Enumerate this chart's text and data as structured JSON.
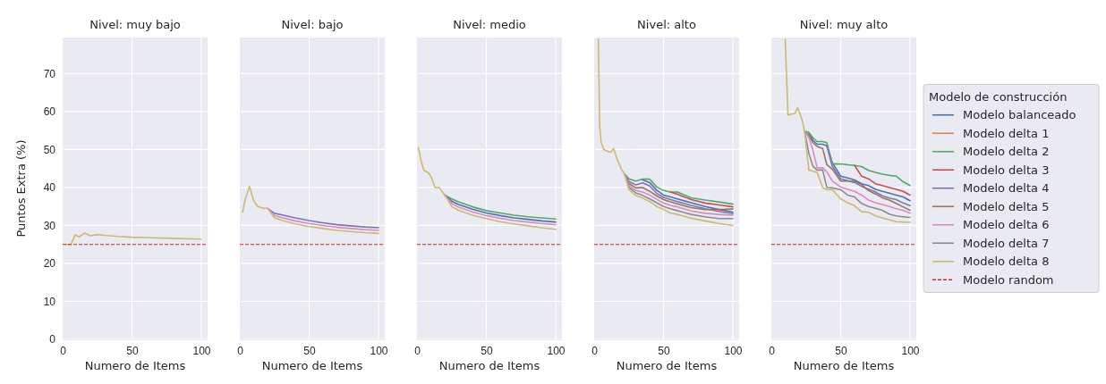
{
  "chart_data": [
    {
      "type": "line",
      "title": "Nivel: muy bajo",
      "xlabel": "Numero de Items",
      "ylabel": "Puntos Extra (%)",
      "xlim": [
        0,
        104.5
      ],
      "ylim": [
        0,
        79.5
      ],
      "xticks": [
        0,
        50,
        100
      ],
      "yticks": [
        0,
        10,
        20,
        30,
        40,
        50,
        60,
        70
      ],
      "grid": true,
      "x": [
        2,
        6,
        9,
        12,
        16,
        20,
        25,
        30,
        40,
        50,
        60,
        70,
        80,
        90,
        100
      ],
      "series": [
        {
          "color": "#ccb974",
          "values": [
            25,
            25,
            27.5,
            27,
            28,
            27.3,
            27.6,
            27.4,
            27.1,
            26.9,
            26.8,
            26.7,
            26.6,
            26.5,
            26.4
          ]
        }
      ],
      "ref_lines": [
        {
          "axis": "y",
          "value": 25,
          "color": "#d62728",
          "line_style": "dashed"
        }
      ]
    },
    {
      "type": "line",
      "title": "Nivel: bajo",
      "xlabel": "Numero de Items",
      "xlim": [
        0,
        104.5
      ],
      "ylim": [
        0,
        79.5
      ],
      "xticks": [
        0,
        50,
        100
      ],
      "yticks": [
        0,
        10,
        20,
        30,
        40,
        50,
        60,
        70
      ],
      "grid": true,
      "tick_labels": "x",
      "x": [
        2,
        4,
        7,
        10,
        13,
        17,
        20,
        25,
        30,
        40,
        50,
        60,
        70,
        80,
        90,
        100
      ],
      "series": [
        {
          "color": "#8172b3",
          "values": [
            null,
            null,
            null,
            null,
            null,
            null,
            34.5,
            33.2,
            32.8,
            32,
            31.3,
            30.7,
            30.2,
            29.9,
            29.6,
            29.4
          ]
        },
        {
          "color": "#da8bc3",
          "values": [
            null,
            null,
            null,
            null,
            null,
            null,
            34.5,
            32.6,
            32.1,
            31.2,
            30.5,
            30,
            29.5,
            29.2,
            28.9,
            28.7
          ]
        },
        {
          "color": "#ccb974",
          "values": [
            33.5,
            37,
            40.3,
            36.5,
            35,
            34.5,
            34.5,
            32,
            31.4,
            30.4,
            29.7,
            29.2,
            28.7,
            28.4,
            28.1,
            27.9
          ]
        }
      ],
      "ref_lines": [
        {
          "axis": "y",
          "value": 25,
          "color": "#d62728",
          "line_style": "dashed"
        }
      ]
    },
    {
      "type": "line",
      "title": "Nivel: medio",
      "xlabel": "Numero de Items",
      "xlim": [
        0,
        104.5
      ],
      "ylim": [
        0,
        79.5
      ],
      "xticks": [
        0,
        50,
        100
      ],
      "yticks": [
        0,
        10,
        20,
        30,
        40,
        50,
        60,
        70
      ],
      "grid": true,
      "tick_labels": "x",
      "x": [
        1,
        3,
        5,
        8,
        10,
        13,
        16,
        20,
        25,
        30,
        40,
        50,
        60,
        70,
        80,
        90,
        100
      ],
      "series": [
        {
          "color": "#55a868",
          "values": [
            null,
            null,
            null,
            null,
            null,
            null,
            null,
            38,
            37,
            36.2,
            34.9,
            33.9,
            33.3,
            32.7,
            32.3,
            32,
            31.7
          ]
        },
        {
          "color": "#4c72b0",
          "values": [
            null,
            null,
            null,
            null,
            null,
            null,
            null,
            38,
            36.4,
            35.5,
            34.3,
            33.3,
            32.6,
            32,
            31.6,
            31.2,
            30.9
          ]
        },
        {
          "color": "#da8bc3",
          "values": [
            null,
            null,
            null,
            null,
            null,
            null,
            null,
            38,
            35.8,
            34.8,
            33.6,
            32.6,
            31.9,
            31.3,
            30.9,
            30.5,
            30.2
          ]
        },
        {
          "color": "#ccb974",
          "values": [
            50.5,
            47,
            44.5,
            44,
            43,
            40,
            40,
            38,
            35,
            34,
            32.7,
            31.8,
            31,
            30.4,
            29.9,
            29.4,
            29
          ]
        }
      ],
      "ref_lines": [
        {
          "axis": "y",
          "value": 25,
          "color": "#d62728",
          "line_style": "dashed"
        }
      ]
    },
    {
      "type": "line",
      "title": "Nivel: alto",
      "xlabel": "Numero de Items",
      "xlim": [
        0,
        104.5
      ],
      "ylim": [
        0,
        79.5
      ],
      "xticks": [
        0,
        50,
        100
      ],
      "yticks": [
        0,
        10,
        20,
        30,
        40,
        50,
        60,
        70
      ],
      "grid": true,
      "tick_labels": "x",
      "x": [
        3,
        4,
        5,
        7,
        10,
        12,
        14,
        17,
        20,
        22,
        25,
        30,
        35,
        40,
        45,
        50,
        55,
        60,
        70,
        80,
        90,
        100
      ],
      "series": [
        {
          "color": "#4c72b0",
          "values": [
            null,
            null,
            null,
            null,
            null,
            null,
            null,
            null,
            null,
            null,
            null,
            null,
            42,
            41.3,
            39.3,
            38,
            37.5,
            37,
            36,
            35,
            34.2,
            33.5
          ]
        },
        {
          "color": "#55a868",
          "values": [
            null,
            null,
            null,
            null,
            null,
            null,
            null,
            null,
            null,
            43.5,
            42.3,
            41.7,
            42.2,
            42.2,
            40.2,
            39.2,
            38.8,
            38.8,
            37.3,
            36.7,
            36.2,
            35.6
          ]
        },
        {
          "color": "#c44e52",
          "values": [
            null,
            null,
            null,
            null,
            null,
            null,
            null,
            null,
            null,
            null,
            null,
            null,
            null,
            null,
            null,
            null,
            38.8,
            38.2,
            36.8,
            35.9,
            35.4,
            34.9
          ]
        },
        {
          "color": "#8172b3",
          "values": [
            null,
            null,
            null,
            null,
            null,
            null,
            null,
            null,
            null,
            43.5,
            41.6,
            40.7,
            41.2,
            40.4,
            38.5,
            37.4,
            36.8,
            36.3,
            35.3,
            34.4,
            33.7,
            33.1
          ]
        },
        {
          "color": "#937860",
          "values": [
            null,
            null,
            null,
            null,
            null,
            null,
            null,
            null,
            null,
            43.5,
            41.1,
            39.9,
            40,
            39,
            37.8,
            36.8,
            36.2,
            35.7,
            34.7,
            34.2,
            34.2,
            34.3
          ]
        },
        {
          "color": "#da8bc3",
          "values": [
            null,
            null,
            null,
            null,
            null,
            null,
            null,
            null,
            null,
            43.5,
            40.6,
            39.2,
            38.8,
            38,
            36.9,
            35.9,
            35.3,
            34.9,
            33.8,
            33.2,
            32.9,
            32.7
          ]
        },
        {
          "color": "#8c8c8c",
          "values": [
            null,
            null,
            null,
            null,
            null,
            null,
            null,
            null,
            null,
            43.5,
            40.1,
            38.6,
            37.9,
            37,
            36,
            35,
            34.4,
            33.9,
            32.9,
            32.3,
            31.8,
            31.8
          ]
        },
        {
          "color": "#ccb974",
          "values": [
            79,
            56,
            52,
            50,
            49.5,
            49.3,
            50.3,
            47,
            44.6,
            43.5,
            39.5,
            37.9,
            37.2,
            36.3,
            35,
            34.2,
            33.3,
            32.9,
            31.9,
            31.2,
            30.5,
            30
          ]
        }
      ],
      "ref_lines": [
        {
          "axis": "y",
          "value": 25,
          "color": "#d62728",
          "line_style": "dashed"
        }
      ]
    },
    {
      "type": "line",
      "title": "Nivel: muy alto",
      "xlabel": "Numero de Items",
      "xlim": [
        0,
        104.5
      ],
      "ylim": [
        0,
        79.5
      ],
      "xticks": [
        0,
        50,
        100
      ],
      "yticks": [
        0,
        10,
        20,
        30,
        40,
        50,
        60,
        70
      ],
      "grid": true,
      "tick_labels": "x",
      "legend": "right",
      "legend_title": "Modelo de construcción",
      "x": [
        10,
        12,
        17,
        19,
        22,
        24,
        27,
        30,
        33,
        37,
        40,
        44,
        50,
        55,
        60,
        65,
        70,
        75,
        80,
        85,
        90,
        95,
        100
      ],
      "series": [
        {
          "name": "Modelo balanceado",
          "color": "#4c72b0",
          "values": [
            null,
            null,
            null,
            null,
            null,
            null,
            54.5,
            52.4,
            51.4,
            51.4,
            51,
            46.5,
            43,
            42.5,
            42,
            41,
            40.5,
            39.5,
            39,
            38.5,
            38,
            37.5,
            36.5
          ]
        },
        {
          "name": "Modelo delta 1",
          "color": "#dd8452",
          "values": [
            null,
            null,
            null,
            null,
            null,
            null,
            null,
            null,
            null,
            null,
            null,
            null,
            null,
            null,
            null,
            null,
            null,
            null,
            null,
            null,
            null,
            null,
            null
          ]
        },
        {
          "name": "Modelo delta 2",
          "color": "#55a868",
          "values": [
            null,
            null,
            null,
            null,
            null,
            54.8,
            54.5,
            53.1,
            52.1,
            52.1,
            51.8,
            46.2,
            46.2,
            46,
            45.8,
            45.5,
            44.5,
            44,
            43.5,
            43.2,
            43,
            41.5,
            40.5
          ]
        },
        {
          "name": "Modelo delta 3",
          "color": "#c44e52",
          "values": [
            null,
            null,
            null,
            null,
            null,
            null,
            null,
            null,
            null,
            null,
            null,
            null,
            null,
            null,
            45.8,
            43,
            42.3,
            41,
            40.5,
            40,
            39.5,
            39,
            38
          ]
        },
        {
          "name": "Modelo delta 4",
          "color": "#8172b3",
          "values": [
            null,
            null,
            null,
            null,
            null,
            null,
            null,
            null,
            null,
            null,
            51,
            45.5,
            42.3,
            41.8,
            41.3,
            40.3,
            39.6,
            38.8,
            37.8,
            37.2,
            36.8,
            35.9,
            35.2
          ]
        },
        {
          "name": "Modelo delta 5",
          "color": "#937860",
          "values": [
            null,
            null,
            null,
            null,
            null,
            54.8,
            53.8,
            51.8,
            50.8,
            50.3,
            46,
            44.8,
            41.7,
            41.7,
            41.6,
            40.8,
            39.2,
            38.3,
            37.3,
            36.7,
            35.8,
            34.9,
            34
          ]
        },
        {
          "name": "Modelo delta 6",
          "color": "#da8bc3",
          "values": [
            null,
            null,
            null,
            null,
            null,
            54.8,
            53.2,
            49.8,
            45.2,
            45.2,
            44.1,
            41.7,
            40.1,
            39.5,
            39,
            38,
            36.7,
            36,
            35.5,
            35,
            34.4,
            34,
            33.2
          ]
        },
        {
          "name": "Modelo delta 7",
          "color": "#8c8c8c",
          "values": [
            null,
            null,
            null,
            null,
            null,
            54.8,
            49,
            45.6,
            44.6,
            44.6,
            40,
            39.9,
            39.4,
            38,
            37.5,
            35.8,
            35,
            34.5,
            34,
            33,
            32.5,
            32.3,
            32.1
          ]
        },
        {
          "name": "Modelo delta 8",
          "color": "#ccb974",
          "values": [
            79,
            59.1,
            59.5,
            61,
            58,
            54.8,
            44.6,
            44.3,
            44,
            40,
            39.4,
            39.4,
            37,
            36,
            35.2,
            33.6,
            33.5,
            32.5,
            32,
            31.5,
            31,
            30.9,
            30.8
          ]
        }
      ],
      "ref_lines": [
        {
          "axis": "y",
          "value": 25,
          "label": "Modelo random",
          "color": "#d62728",
          "line_style": "dashed"
        }
      ]
    }
  ]
}
